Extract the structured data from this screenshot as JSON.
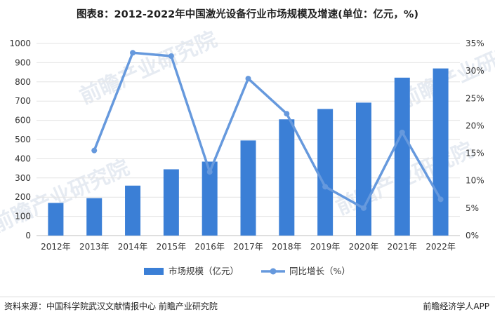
{
  "title": "图表8：2012-2022年中国激光设备行业市场规模及增速(单位：亿元，%)",
  "footer": {
    "source": "资料来源：中国科学院武汉文献情报中心 前瞻产业研究院",
    "brand": "前瞻经济学人APP"
  },
  "watermark": "前瞻产业研究院",
  "chart_data": {
    "type": "bar",
    "title": "图表8：2012-2022年中国激光设备行业市场规模及增速(单位：亿元，%)",
    "categories": [
      "2012年",
      "2013年",
      "2014年",
      "2015年",
      "2016年",
      "2017年",
      "2018年",
      "2019年",
      "2020年",
      "2021年",
      "2022年"
    ],
    "series": [
      {
        "name": "市场规模（亿元）",
        "type": "bar",
        "axis": "left",
        "color": "#3b7fd6",
        "values": [
          170,
          195,
          260,
          345,
          385,
          495,
          605,
          659,
          692,
          822,
          870
        ]
      },
      {
        "name": "同比增长（%）",
        "type": "line",
        "axis": "right",
        "color": "#6699dd",
        "values": [
          null,
          15.5,
          33.3,
          32.7,
          11.6,
          28.6,
          22.2,
          8.9,
          5.0,
          18.8,
          6.6
        ]
      }
    ],
    "y_left": {
      "min": 0,
      "max": 1000,
      "ticks": [
        "0",
        "100",
        "200",
        "300",
        "400",
        "500",
        "600",
        "700",
        "800",
        "900",
        "1000"
      ]
    },
    "y_right": {
      "min": 0,
      "max": 35,
      "ticks": [
        "0%",
        "5%",
        "10%",
        "15%",
        "20%",
        "25%",
        "30%",
        "35%"
      ]
    },
    "grid": true,
    "legend": "bottom"
  }
}
